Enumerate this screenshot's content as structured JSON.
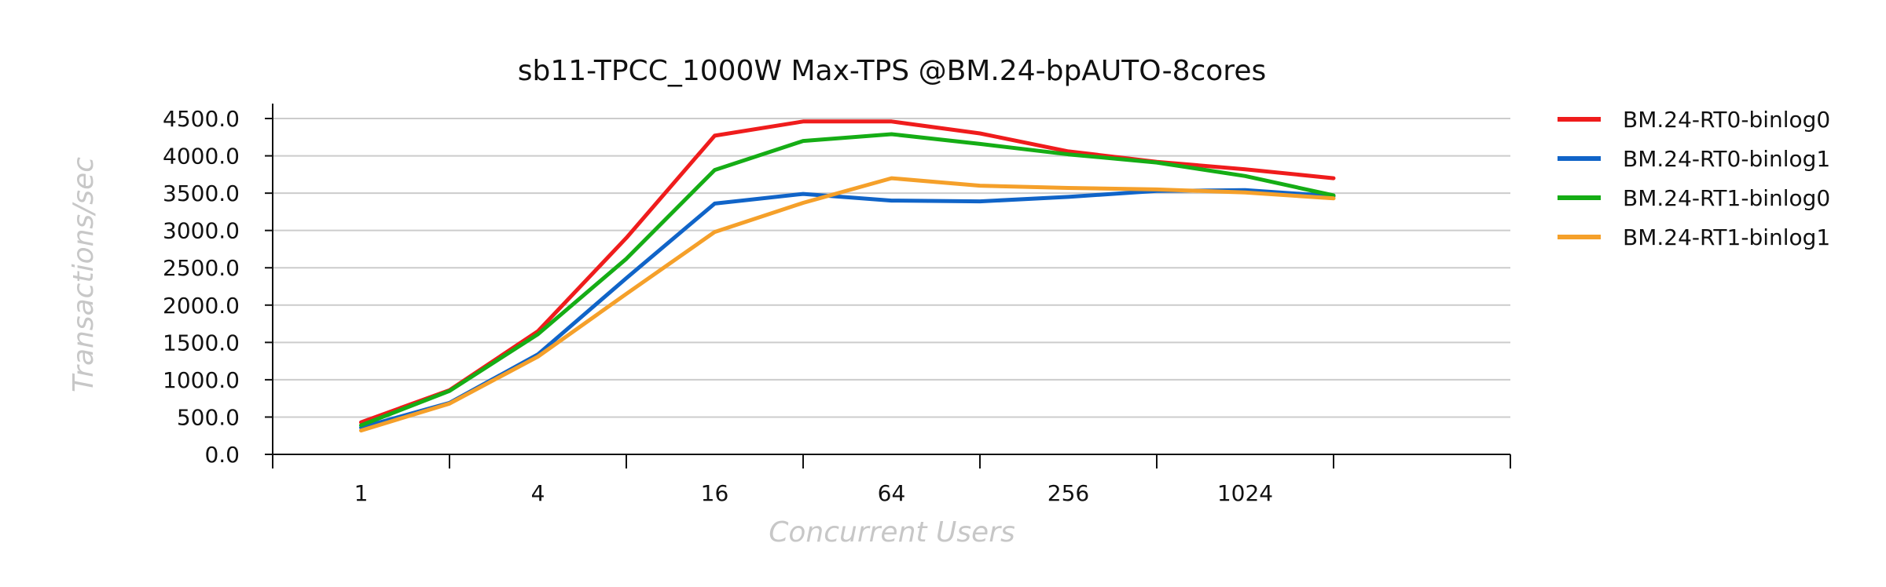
{
  "chart_data": {
    "type": "line",
    "title": "sb11-TPCC_1000W Max-TPS @BM.24-bpAUTO-8cores",
    "xlabel": "Concurrent Users",
    "ylabel": "Transactions/sec",
    "x": [
      1,
      2,
      4,
      8,
      16,
      32,
      64,
      128,
      256,
      512,
      1024,
      2048
    ],
    "x_tick_labels": [
      "1",
      "4",
      "16",
      "64",
      "256",
      "1024"
    ],
    "x_tick_values": [
      1,
      4,
      16,
      64,
      256,
      1024
    ],
    "x_scale": "log2",
    "xlim": [
      0.5,
      8192
    ],
    "ylim": [
      0,
      4700
    ],
    "y_ticks": [
      "0.0",
      "500.0",
      "1000.0",
      "1500.0",
      "2000.0",
      "2500.0",
      "3000.0",
      "3500.0",
      "4000.0",
      "4500.0"
    ],
    "grid": "horizontal",
    "legend_position": "right",
    "series": [
      {
        "name": "BM.24-RT0-binlog0",
        "color": "#ef1c1c",
        "values": [
          430,
          860,
          1650,
          2900,
          4270,
          4460,
          4460,
          4300,
          4060,
          3920,
          3820,
          3700
        ]
      },
      {
        "name": "BM.24-RT0-binlog1",
        "color": "#1064c8",
        "values": [
          360,
          690,
          1340,
          2360,
          3360,
          3490,
          3400,
          3390,
          3450,
          3530,
          3540,
          3460
        ]
      },
      {
        "name": "BM.24-RT1-binlog0",
        "color": "#15ad15",
        "values": [
          390,
          850,
          1610,
          2620,
          3810,
          4200,
          4290,
          4160,
          4020,
          3910,
          3730,
          3470
        ]
      },
      {
        "name": "BM.24-RT1-binlog1",
        "color": "#f5a02a",
        "values": [
          320,
          680,
          1310,
          2150,
          2980,
          3370,
          3700,
          3600,
          3570,
          3550,
          3510,
          3430
        ]
      }
    ]
  }
}
